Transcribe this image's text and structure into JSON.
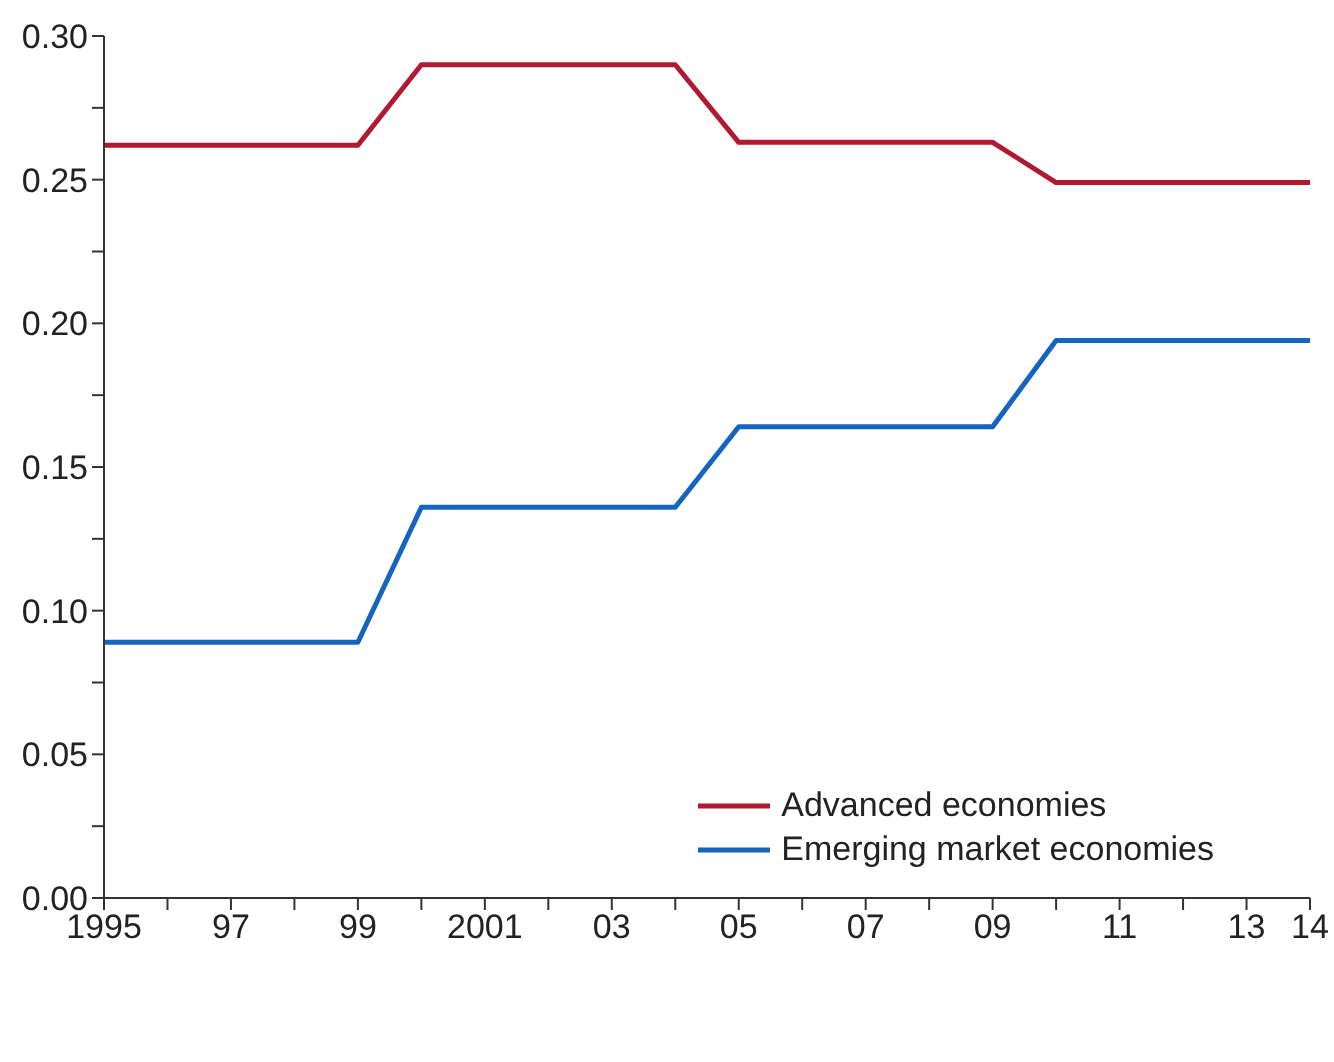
{
  "chart_data": {
    "type": "line",
    "x": [
      1995,
      1996,
      1997,
      1998,
      1999,
      2000,
      2001,
      2002,
      2003,
      2004,
      2005,
      2006,
      2007,
      2008,
      2009,
      2010,
      2011,
      2012,
      2013,
      2014
    ],
    "series": [
      {
        "name": "Advanced economies",
        "color": "#b0192f",
        "values": [
          0.262,
          0.262,
          0.262,
          0.262,
          0.262,
          0.29,
          0.29,
          0.29,
          0.29,
          0.29,
          0.263,
          0.263,
          0.263,
          0.263,
          0.263,
          0.249,
          0.249,
          0.249,
          0.249,
          0.249
        ]
      },
      {
        "name": "Emerging market economies",
        "color": "#1565c0",
        "values": [
          0.089,
          0.089,
          0.089,
          0.089,
          0.089,
          0.136,
          0.136,
          0.136,
          0.136,
          0.136,
          0.164,
          0.164,
          0.164,
          0.164,
          0.164,
          0.194,
          0.194,
          0.194,
          0.194,
          0.194
        ]
      }
    ],
    "xlim": [
      1995,
      2014
    ],
    "xticks": [
      {
        "value": 1995,
        "label": "1995"
      },
      {
        "value": 1996,
        "label": null
      },
      {
        "value": 1997,
        "label": "97"
      },
      {
        "value": 1998,
        "label": null
      },
      {
        "value": 1999,
        "label": "99"
      },
      {
        "value": 2000,
        "label": null
      },
      {
        "value": 2001,
        "label": "2001"
      },
      {
        "value": 2002,
        "label": null
      },
      {
        "value": 2003,
        "label": "03"
      },
      {
        "value": 2004,
        "label": null
      },
      {
        "value": 2005,
        "label": "05"
      },
      {
        "value": 2006,
        "label": null
      },
      {
        "value": 2007,
        "label": "07"
      },
      {
        "value": 2008,
        "label": null
      },
      {
        "value": 2009,
        "label": "09"
      },
      {
        "value": 2010,
        "label": null
      },
      {
        "value": 2011,
        "label": "11"
      },
      {
        "value": 2012,
        "label": null
      },
      {
        "value": 2013,
        "label": "13"
      },
      {
        "value": 2014,
        "label": "14"
      }
    ],
    "ylim": [
      0,
      0.3
    ],
    "yticks": [
      {
        "value": 0,
        "label": "0.00"
      },
      {
        "value": 0.025,
        "label": null
      },
      {
        "value": 0.05,
        "label": "0.05"
      },
      {
        "value": 0.075,
        "label": null
      },
      {
        "value": 0.1,
        "label": "0.10"
      },
      {
        "value": 0.125,
        "label": null
      },
      {
        "value": 0.15,
        "label": "0.15"
      },
      {
        "value": 0.175,
        "label": null
      },
      {
        "value": 0.2,
        "label": "0.20"
      },
      {
        "value": 0.225,
        "label": null
      },
      {
        "value": 0.25,
        "label": "0.25"
      },
      {
        "value": 0.275,
        "label": null
      },
      {
        "value": 0.3,
        "label": "0.30"
      }
    ],
    "grid": false,
    "legend": "bottom right",
    "marker": "none",
    "line_style": "solid"
  }
}
